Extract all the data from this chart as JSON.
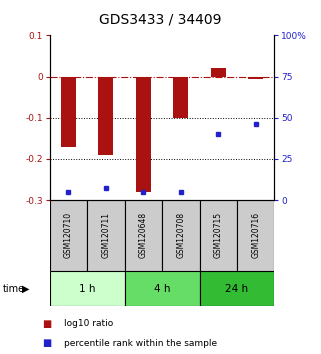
{
  "title": "GDS3433 / 34409",
  "samples": [
    "GSM120710",
    "GSM120711",
    "GSM120648",
    "GSM120708",
    "GSM120715",
    "GSM120716"
  ],
  "log10_ratio": [
    -0.17,
    -0.19,
    -0.28,
    -0.1,
    0.02,
    -0.005
  ],
  "percentile_rank": [
    5,
    7,
    5,
    5,
    40,
    46
  ],
  "ylim_left": [
    -0.3,
    0.1
  ],
  "ylim_right": [
    0,
    100
  ],
  "bar_color": "#aa1111",
  "dot_color": "#2222cc",
  "time_groups": [
    {
      "label": "1 h",
      "start": 0,
      "end": 2,
      "color": "#ccffcc"
    },
    {
      "label": "4 h",
      "start": 2,
      "end": 4,
      "color": "#66dd66"
    },
    {
      "label": "24 h",
      "start": 4,
      "end": 6,
      "color": "#33bb33"
    }
  ],
  "legend_bar_label": "log10 ratio",
  "legend_dot_label": "percentile rank within the sample",
  "time_label": "time",
  "title_fontsize": 10,
  "tick_fontsize": 6.5,
  "sample_fontsize": 5.5
}
